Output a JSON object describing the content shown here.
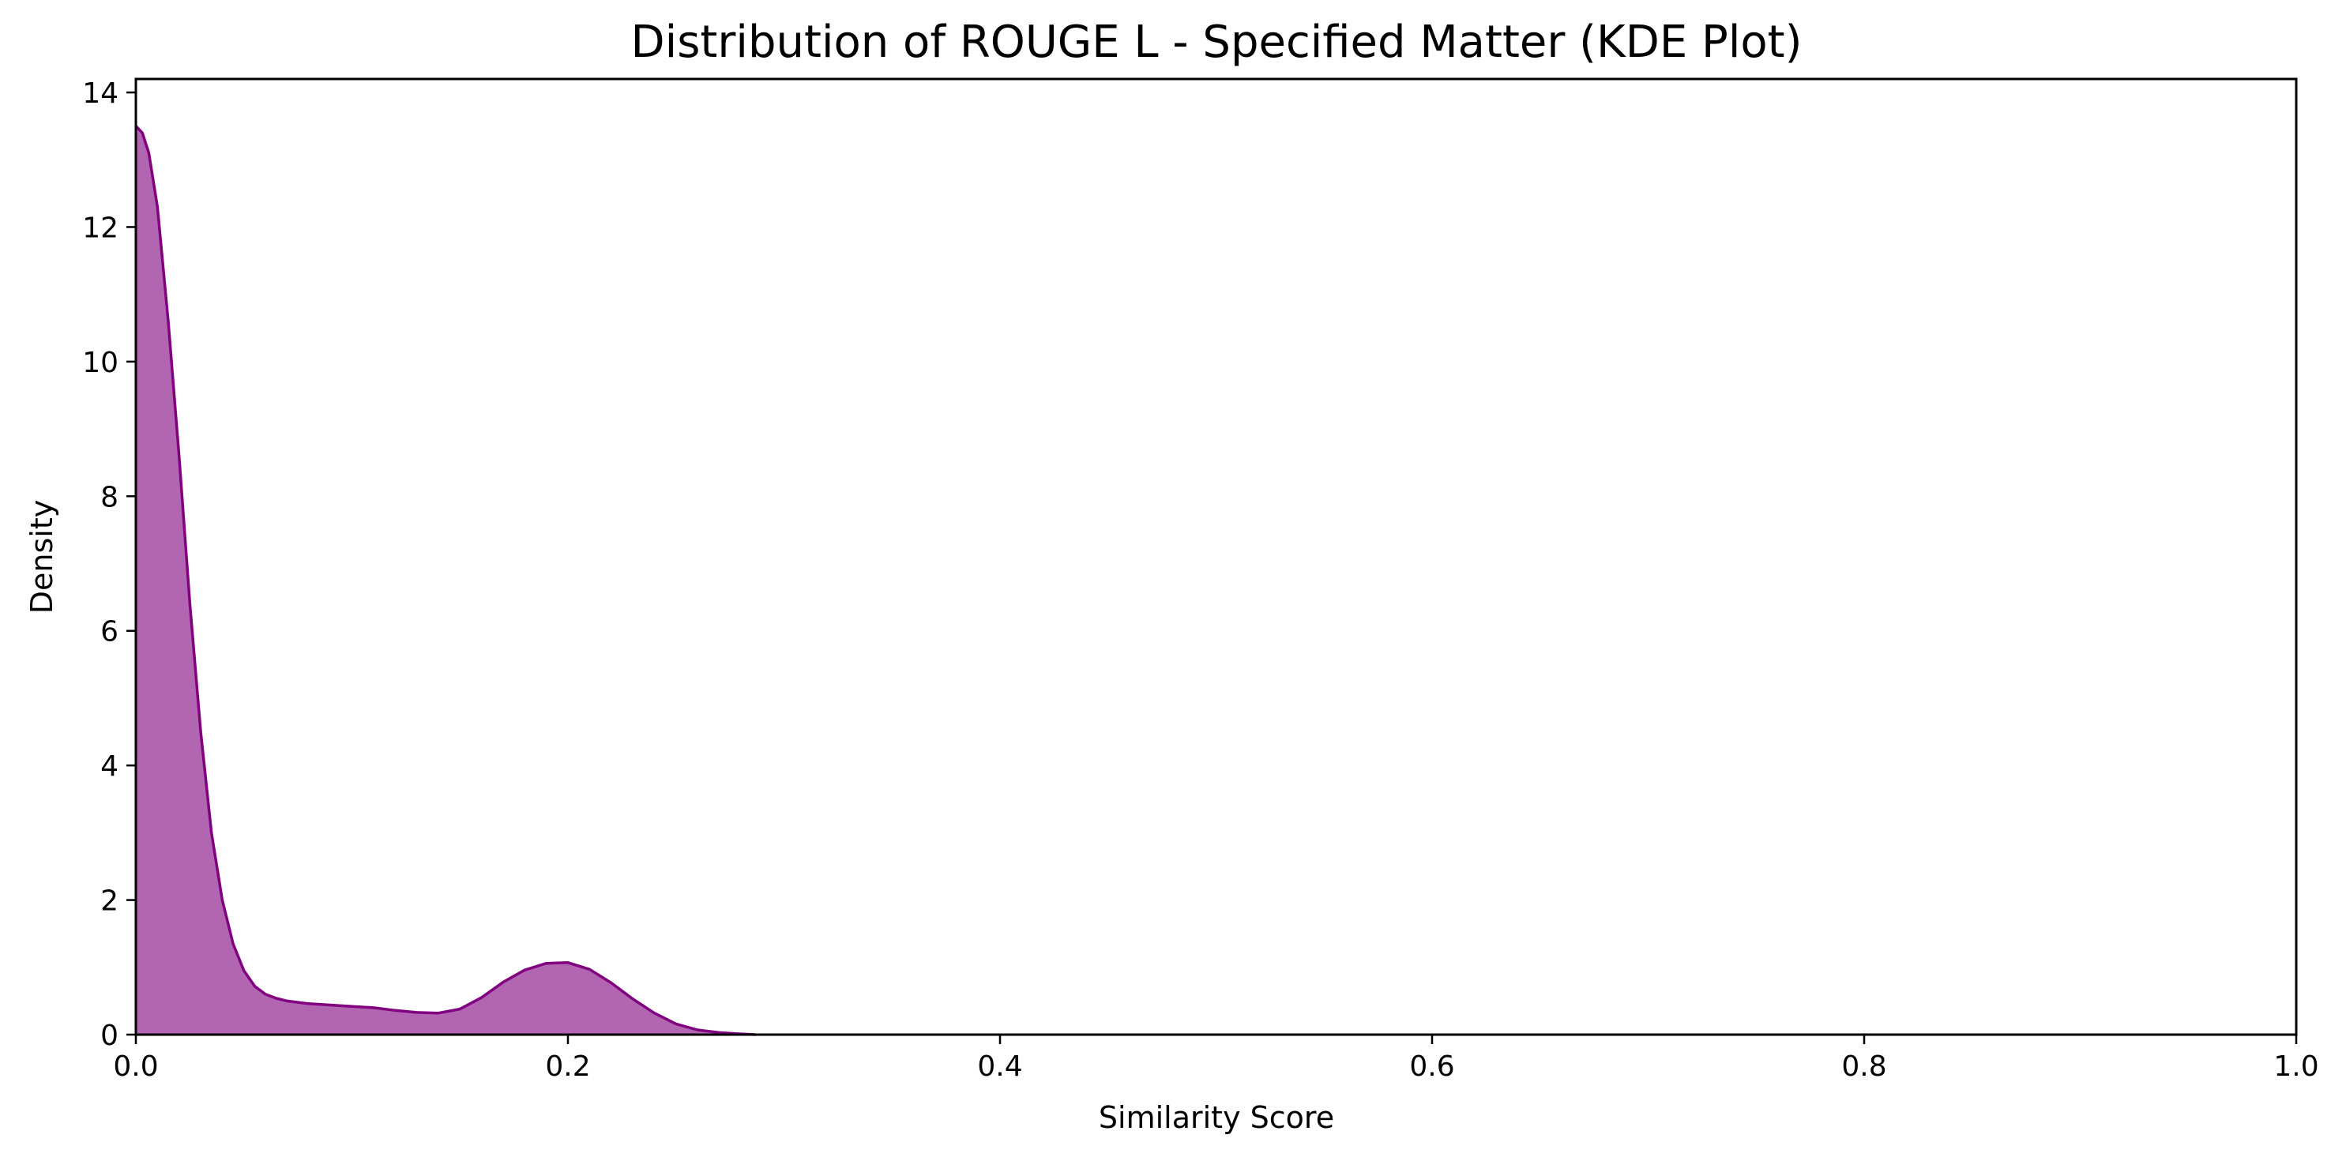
{
  "chart_data": {
    "type": "area",
    "title": "Distribution of ROUGE L - Specified Matter (KDE Plot)",
    "xlabel": "Similarity Score",
    "ylabel": "Density",
    "xlim": [
      0.0,
      1.0
    ],
    "ylim": [
      0,
      14.2
    ],
    "x_ticks": [
      "0.0",
      "0.2",
      "0.4",
      "0.6",
      "0.8",
      "1.0"
    ],
    "y_ticks": [
      "0",
      "2",
      "4",
      "6",
      "8",
      "10",
      "12",
      "14"
    ],
    "grid": false,
    "legend": "none",
    "colors": {
      "line": "#800080",
      "fill": "#b266b2"
    },
    "series": [
      {
        "x": [
          0.0,
          0.003,
          0.006,
          0.01,
          0.015,
          0.02,
          0.025,
          0.03,
          0.035,
          0.04,
          0.045,
          0.05,
          0.055,
          0.06,
          0.065,
          0.07,
          0.075,
          0.08,
          0.09,
          0.1,
          0.11,
          0.12,
          0.13,
          0.14,
          0.15,
          0.16,
          0.17,
          0.18,
          0.19,
          0.2,
          0.21,
          0.22,
          0.23,
          0.24,
          0.25,
          0.26,
          0.27,
          0.28,
          0.287
        ],
        "y": [
          13.5,
          13.4,
          13.1,
          12.3,
          10.6,
          8.6,
          6.4,
          4.5,
          3.0,
          2.0,
          1.35,
          0.95,
          0.72,
          0.6,
          0.54,
          0.5,
          0.48,
          0.46,
          0.44,
          0.42,
          0.4,
          0.36,
          0.33,
          0.32,
          0.38,
          0.55,
          0.78,
          0.96,
          1.06,
          1.07,
          0.97,
          0.77,
          0.53,
          0.32,
          0.16,
          0.07,
          0.03,
          0.01,
          0.0
        ]
      }
    ]
  }
}
